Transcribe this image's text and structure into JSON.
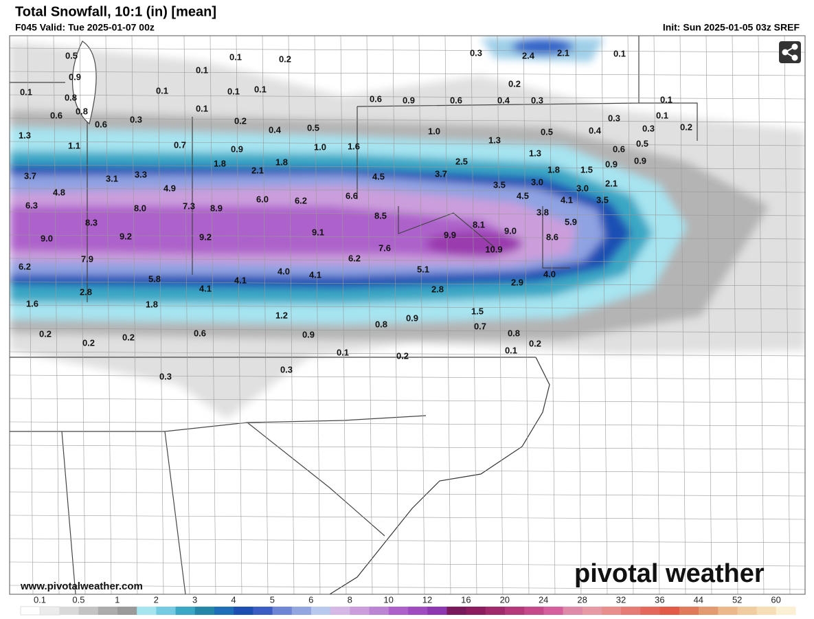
{
  "header": {
    "title": "Total Snowfall, 10:1 (in) [mean]",
    "valid": "F045 Valid: Tue 2025-01-07 00z",
    "init": "Init: Sun 2025-01-05 03z SREF"
  },
  "map": {
    "labels": [
      "0.5",
      "0.1",
      "0.2",
      "0.3",
      "2.4",
      "2.1",
      "0.1",
      "0.1",
      "0.9",
      "0.1",
      "0.1",
      "0.1",
      "0.1",
      "0.2",
      "0.1",
      "0.8",
      "0.6",
      "0.9",
      "0.6",
      "0.4",
      "0.3",
      "0.6",
      "0.8",
      "0.1",
      "0.1",
      "0.6",
      "0.3",
      "0.2",
      "0.3",
      "0.4",
      "0.5",
      "0.3",
      "0.2",
      "1.3",
      "1.0",
      "0.5",
      "0.4",
      "1.1",
      "0.7",
      "0.9",
      "1.0",
      "1.6",
      "1.3",
      "0.5",
      "0.6",
      "1.3",
      "1.8",
      "1.8",
      "2.1",
      "2.5",
      "0.9",
      "0.9",
      "1.8",
      "1.5",
      "3.7",
      "3.1",
      "3.3",
      "4.5",
      "3.7",
      "3.5",
      "3.0",
      "2.1",
      "4.8",
      "4.9",
      "3.0",
      "4.5",
      "6.6",
      "4.1",
      "3.5",
      "6.3",
      "8.0",
      "7.3",
      "8.9",
      "6.0",
      "6.2",
      "8.5",
      "3.8",
      "5.9",
      "8.3",
      "8.1",
      "9.0",
      "9.0",
      "9.2",
      "9.2",
      "9.1",
      "9.9",
      "8.6",
      "10.9",
      "7.6",
      "6.2",
      "7.9",
      "6.2",
      "5.1",
      "4.0",
      "4.1",
      "4.0",
      "5.8",
      "4.1",
      "4.1",
      "2.9",
      "2.8",
      "2.8",
      "1.6",
      "1.8",
      "1.5",
      "1.2",
      "0.9",
      "0.8",
      "0.7",
      "0.2",
      "0.6",
      "0.9",
      "0.8",
      "0.2",
      "0.2",
      "0.2",
      "0.1",
      "0.2",
      "0.1",
      "0.3",
      "0.3"
    ]
  },
  "footer": {
    "url": "www.pivotalweather.com",
    "brand": "pivotal weather"
  },
  "legend": {
    "ticks": [
      "0.1",
      "0.5",
      "1",
      "2",
      "3",
      "4",
      "5",
      "6",
      "8",
      "10",
      "12",
      "16",
      "20",
      "24",
      "28",
      "32",
      "36",
      "44",
      "52",
      "60"
    ]
  }
}
